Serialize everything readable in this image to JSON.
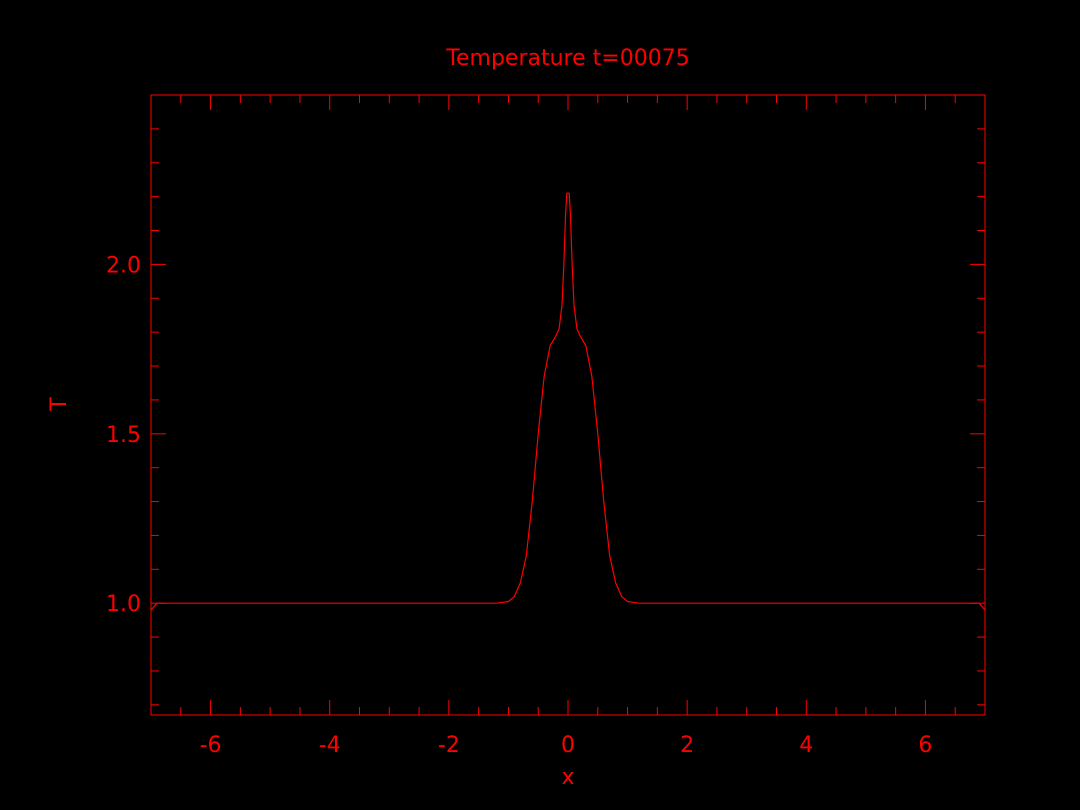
{
  "chart_data": {
    "type": "line",
    "title": "Temperature t=00075",
    "xlabel": "x",
    "ylabel": "T",
    "xlim": [
      -7,
      7
    ],
    "ylim": [
      0.67,
      2.5
    ],
    "x_ticks": [
      {
        "value": -6,
        "label": "-6"
      },
      {
        "value": -4,
        "label": "-4"
      },
      {
        "value": -2,
        "label": "-2"
      },
      {
        "value": 0,
        "label": "0"
      },
      {
        "value": 2,
        "label": "2"
      },
      {
        "value": 4,
        "label": "4"
      },
      {
        "value": 6,
        "label": "6"
      }
    ],
    "x_minor_step": 0.5,
    "y_ticks": [
      {
        "value": 1.0,
        "label": "1.0"
      },
      {
        "value": 1.5,
        "label": "1.5"
      },
      {
        "value": 2.0,
        "label": "2.0"
      }
    ],
    "y_minor_step": 0.1,
    "grid": false,
    "color": "#ff0000",
    "background": "#000000",
    "series": [
      {
        "x": [
          -7.0,
          -6.9,
          -6.0,
          -4.0,
          -2.0,
          -1.2,
          -1.0,
          -0.9,
          -0.8,
          -0.7,
          -0.6,
          -0.5,
          -0.4,
          -0.3,
          -0.2,
          -0.15,
          -0.1,
          -0.07,
          -0.04,
          -0.02,
          0.0,
          0.02,
          0.04,
          0.07,
          0.1,
          0.15,
          0.2,
          0.3,
          0.4,
          0.5,
          0.6,
          0.7,
          0.8,
          0.9,
          1.0,
          1.2,
          2.0,
          4.0,
          6.0,
          6.9,
          7.0
        ],
        "y": [
          0.98,
          1.0,
          1.0,
          1.0,
          1.0,
          1.0,
          1.005,
          1.02,
          1.06,
          1.14,
          1.3,
          1.5,
          1.67,
          1.76,
          1.79,
          1.81,
          1.88,
          2.0,
          2.15,
          2.21,
          2.21,
          2.21,
          2.15,
          2.0,
          1.88,
          1.81,
          1.79,
          1.76,
          1.67,
          1.5,
          1.3,
          1.14,
          1.06,
          1.02,
          1.005,
          1.0,
          1.0,
          1.0,
          1.0,
          1.0,
          0.98
        ]
      }
    ]
  }
}
